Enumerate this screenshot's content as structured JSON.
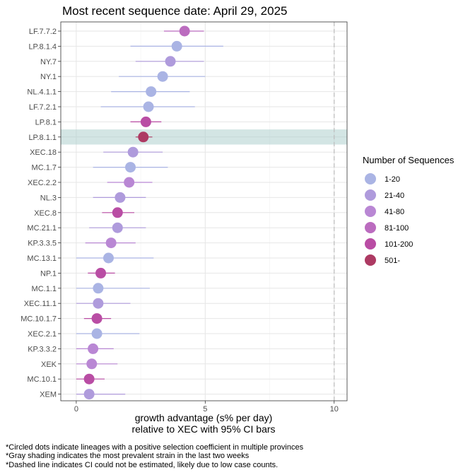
{
  "chart_data": {
    "type": "scatter",
    "title": "Most recent sequence date: April 29, 2025",
    "xlabel_line1": "growth advantage (s% per day)",
    "xlabel_line2": "relative to  XEC  with 95% CI bars",
    "xlim": [
      -0.6,
      10.5
    ],
    "xticks": [
      0,
      5,
      10
    ],
    "dashed_line_x": 10,
    "highlighted_lineage": "LP.8.1.1",
    "legend": {
      "title": "Number of Sequences",
      "position": "right",
      "entries": [
        {
          "label": "1-20",
          "color": "#aab4e4"
        },
        {
          "label": "21-40",
          "color": "#af9bdc"
        },
        {
          "label": "41-80",
          "color": "#b987d4"
        },
        {
          "label": "81-100",
          "color": "#bb6cbf"
        },
        {
          "label": "101-200",
          "color": "#b94da4"
        },
        {
          "label": "501-",
          "color": "#ad3a63"
        }
      ]
    },
    "points": [
      {
        "lineage": "LF.7.7.2",
        "value": 4.2,
        "lo": 3.4,
        "hi": 4.95,
        "group": "81-100"
      },
      {
        "lineage": "LP.8.1.4",
        "value": 3.9,
        "lo": 2.1,
        "hi": 5.7,
        "group": "1-20"
      },
      {
        "lineage": "NY.7",
        "value": 3.65,
        "lo": 2.3,
        "hi": 4.95,
        "group": "21-40"
      },
      {
        "lineage": "NY.1",
        "value": 3.35,
        "lo": 1.65,
        "hi": 5.0,
        "group": "1-20"
      },
      {
        "lineage": "NL.4.1.1",
        "value": 2.9,
        "lo": 1.35,
        "hi": 4.4,
        "group": "1-20"
      },
      {
        "lineage": "LF.7.2.1",
        "value": 2.8,
        "lo": 0.95,
        "hi": 4.6,
        "group": "1-20"
      },
      {
        "lineage": "LP.8.1",
        "value": 2.7,
        "lo": 2.1,
        "hi": 3.3,
        "group": "101-200"
      },
      {
        "lineage": "LP.8.1.1",
        "value": 2.6,
        "lo": 2.3,
        "hi": 2.95,
        "group": "501-"
      },
      {
        "lineage": "XEC.18",
        "value": 2.2,
        "lo": 1.05,
        "hi": 3.35,
        "group": "21-40"
      },
      {
        "lineage": "MC.1.7",
        "value": 2.1,
        "lo": 0.65,
        "hi": 3.55,
        "group": "1-20"
      },
      {
        "lineage": "XEC.2.2",
        "value": 2.05,
        "lo": 1.2,
        "hi": 2.95,
        "group": "41-80"
      },
      {
        "lineage": "NL.3",
        "value": 1.7,
        "lo": 0.65,
        "hi": 2.7,
        "group": "21-40"
      },
      {
        "lineage": "XEC.8",
        "value": 1.6,
        "lo": 1.0,
        "hi": 2.25,
        "group": "101-200"
      },
      {
        "lineage": "MC.21.1",
        "value": 1.6,
        "lo": 0.5,
        "hi": 2.7,
        "group": "21-40"
      },
      {
        "lineage": "KP.3.3.5",
        "value": 1.35,
        "lo": 0.35,
        "hi": 2.3,
        "group": "41-80"
      },
      {
        "lineage": "MC.13.1",
        "value": 1.25,
        "lo": 0.0,
        "hi": 3.0,
        "group": "1-20"
      },
      {
        "lineage": "NP.1",
        "value": 0.95,
        "lo": 0.45,
        "hi": 1.5,
        "group": "101-200"
      },
      {
        "lineage": "MC.1.1",
        "value": 0.85,
        "lo": 0.0,
        "hi": 2.85,
        "group": "1-20"
      },
      {
        "lineage": "XEC.11.1",
        "value": 0.85,
        "lo": 0.0,
        "hi": 2.1,
        "group": "21-40"
      },
      {
        "lineage": "MC.10.1.7",
        "value": 0.8,
        "lo": 0.3,
        "hi": 1.35,
        "group": "101-200"
      },
      {
        "lineage": "XEC.2.1",
        "value": 0.8,
        "lo": 0.0,
        "hi": 2.45,
        "group": "1-20"
      },
      {
        "lineage": "KP.3.3.2",
        "value": 0.65,
        "lo": 0.0,
        "hi": 1.45,
        "group": "41-80"
      },
      {
        "lineage": "XEK",
        "value": 0.6,
        "lo": 0.0,
        "hi": 1.6,
        "group": "41-80"
      },
      {
        "lineage": "MC.10.1",
        "value": 0.5,
        "lo": 0.0,
        "hi": 1.1,
        "group": "101-200"
      },
      {
        "lineage": "XEM",
        "value": 0.5,
        "lo": 0.0,
        "hi": 1.9,
        "group": "21-40"
      }
    ],
    "footnotes": [
      "*Circled dots indicate lineages with a positive selection coefficient in multiple provinces",
      "*Gray shading indicates the most prevalent strain in the last two weeks",
      "*Dashed line indicates CI could not be estimated, likely due to low case counts."
    ]
  }
}
